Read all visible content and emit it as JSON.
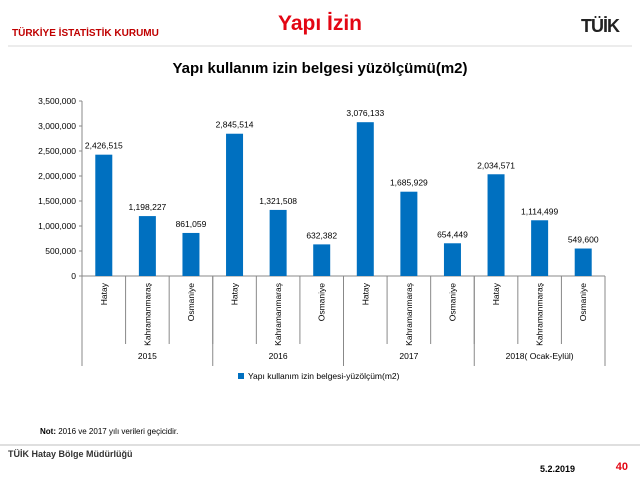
{
  "header": {
    "org": "TÜRKİYE İSTATİSTİK KURUMU",
    "title": "Yapı İzin",
    "logo": "TÜİK"
  },
  "chart_data": {
    "type": "bar",
    "title": "Yapı kullanım izin belgesi yüzölçümü(m2)",
    "categories": [
      "Hatay",
      "Kahramanmaraş",
      "Osmaniye",
      "Hatay",
      "Kahramanmaraş",
      "Osmaniye",
      "Hatay",
      "Kahramanmaraş",
      "Osmaniye",
      "Hatay",
      "Kahramanmaraş",
      "Osmaniye"
    ],
    "groups": [
      "2015",
      "2016",
      "2017",
      "2018( Ocak-Eylül)"
    ],
    "series": [
      {
        "name": "Yapı kullanım izin belgesi-yüzölçüm(m2)",
        "color": "#0070c0",
        "values": [
          2426515,
          1198227,
          861059,
          2845514,
          1321508,
          632382,
          3076133,
          1685929,
          654449,
          2034571,
          1114499,
          549600
        ],
        "value_labels": [
          "2,426,515",
          "1,198,227",
          "861,059",
          "2,845,514",
          "1,321,508",
          "632,382",
          "3,076,133",
          "1,685,929",
          "654,449",
          "2,034,571",
          "1,114,499",
          "549,600"
        ]
      }
    ],
    "ylim": [
      0,
      3500000
    ],
    "yticks": [
      0,
      {
        "value": 500000,
        "label": "500,000"
      },
      {
        "value": 1000000,
        "label": "1,000,000"
      },
      {
        "value": 1500000,
        "label": "1,500,000"
      },
      {
        "value": 2000000,
        "label": "2,000,000"
      },
      {
        "value": 2500000,
        "label": "2,500,000"
      },
      {
        "value": 3000000,
        "label": "3,000,000"
      },
      {
        "value": 3500000,
        "label": "3,500,000"
      }
    ],
    "legend": "bottom"
  },
  "note": {
    "label": "Not:",
    "text": "2016 ve 2017 yılı verileri geçicidir."
  },
  "footer": {
    "office": "TÜİK Hatay Bölge Müdürlüğü",
    "date": "5.2.2019",
    "page": "40"
  }
}
